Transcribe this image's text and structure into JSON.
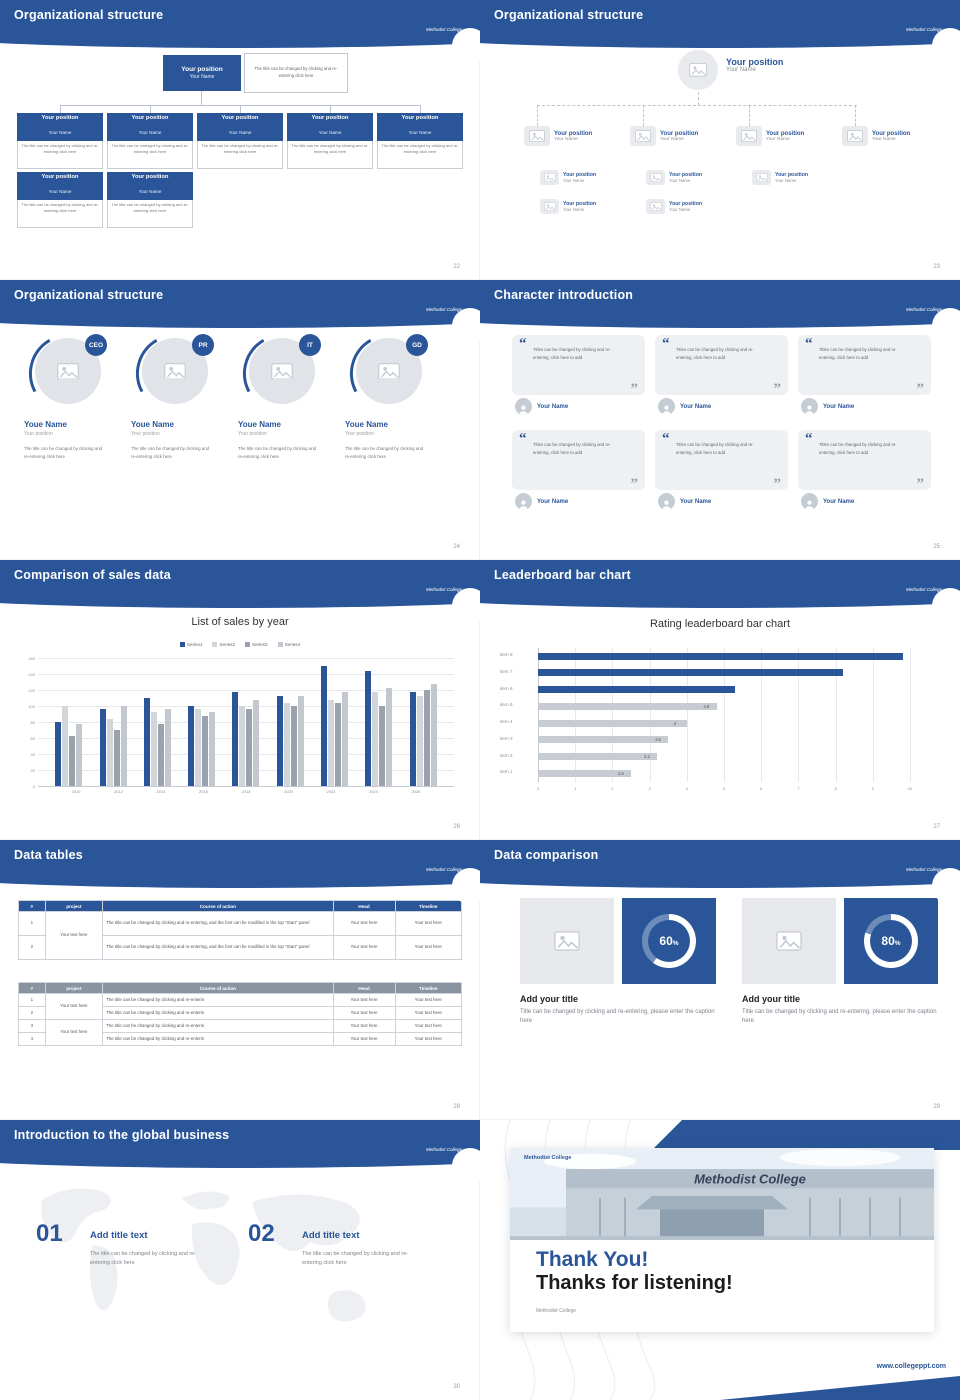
{
  "theme": {
    "brand": "#2a5699",
    "table_header_gray": "#8a93a0",
    "card_gray": "#eef0f3",
    "text_dark": "#333333",
    "text_gray": "#777e87"
  },
  "logo_text": "Methodist College",
  "footer_url": "www.collegeppt.com",
  "icons": {
    "image_placeholder": "image-placeholder-icon",
    "person": "person-icon",
    "open_quote": "open-quote-icon",
    "close_quote": "close-quote-icon"
  },
  "slides": {
    "s22": {
      "title": "Organizational structure",
      "page": "22",
      "node_position": "Your position",
      "node_name": "Your Name",
      "root_note": "The title can be changed by clicking and re-entering click here",
      "node_caption": "The title can be changed by clicking and re-entering click here"
    },
    "s23": {
      "title": "Organizational structure",
      "page": "23",
      "node_position": "Your position",
      "node_name": "Your Name"
    },
    "s24": {
      "title": "Organizational structure",
      "page": "24",
      "roles": [
        "CEO",
        "PR",
        "IT",
        "GD"
      ],
      "member_name": "Youe Name",
      "member_position": "Your position",
      "caption": "The title can be changed by clicking and re-entering click here"
    },
    "s25": {
      "title": "Character introduction",
      "page": "25",
      "quote": "Titles can be changed by clicking and re-entering, click here to add",
      "member_name": "Your Name"
    },
    "s26": {
      "title": "Comparison of sales data",
      "page": "26"
    },
    "s27": {
      "title": "Leaderboard bar chart",
      "page": "27"
    },
    "s28": {
      "title": "Data tables",
      "page": "28",
      "table1": {
        "headers": [
          "#",
          "project",
          "Course of action",
          "Head",
          "Timeline"
        ],
        "rows": [
          [
            "1",
            "Your text here",
            "The title can be changed by clicking and re-entering, and the font can be modified in the top \"Start\" panel",
            "Your text here",
            "Your text here"
          ],
          [
            "2",
            "",
            "The title can be changed by clicking and re-entering, and the font can be modified in the top \"Start\" panel",
            "Your text here",
            "Your text here"
          ]
        ]
      },
      "table2": {
        "headers": [
          "#",
          "project",
          "Course of action",
          "Head",
          "Timeline"
        ],
        "rows": [
          [
            "1",
            "Your text here",
            "The title can be changed by clicking and re-enterin",
            "Your text here",
            "Your text here"
          ],
          [
            "2",
            "",
            "The title can be changed by clicking and re-enterin",
            "Your text here",
            "Your text here"
          ],
          [
            "3",
            "Your text here",
            "The title can be changed by clicking and re-enterin",
            "Your text here",
            "Your text here"
          ],
          [
            "4",
            "",
            "The title can be changed by clicking and re-enterin",
            "Your text here",
            "Your text here"
          ]
        ]
      }
    },
    "s29": {
      "title": "Data comparison",
      "page": "29",
      "panels": [
        {
          "percent": 60,
          "item_title": "Add your title",
          "caption": "Title can be changed by clicking and re-entering, please enter the caption here"
        },
        {
          "percent": 80,
          "item_title": "Add your title",
          "caption": "Title can be changed by clicking and re-entering, please enter the caption here"
        }
      ]
    },
    "s30": {
      "title": "Introduction to the global business",
      "page": "30",
      "items": [
        {
          "number": "01",
          "item_title": "Add title text",
          "caption": "The title can be changed by clicking and re-entering click here"
        },
        {
          "number": "02",
          "item_title": "Add title text",
          "caption": "The title can be changed by clicking and re-entering click here"
        }
      ]
    },
    "s31": {
      "college": "Methodist College",
      "thank_line1": "Thank You!",
      "thank_line2": "Thanks for listening!",
      "building_sign": "Methodist College"
    }
  },
  "chart_data": [
    {
      "slide": "s26",
      "type": "bar",
      "title": "List of sales by year",
      "categories": [
        "2010",
        "2012",
        "2014",
        "2016",
        "2018",
        "2020",
        "2022",
        "2024",
        "2026"
      ],
      "series": [
        {
          "name": "Series1",
          "color": "#2a5699",
          "values": [
            80,
            96,
            110,
            100,
            118,
            112,
            150,
            144,
            118
          ]
        },
        {
          "name": "Series2",
          "color": "#d2d6db",
          "values": [
            100,
            84,
            92,
            96,
            100,
            104,
            108,
            118,
            112
          ]
        },
        {
          "name": "Series3",
          "color": "#9aa3ad",
          "values": [
            62,
            70,
            78,
            88,
            96,
            100,
            104,
            100,
            120
          ]
        },
        {
          "name": "Series4",
          "color": "#c3c8ce",
          "values": [
            78,
            100,
            96,
            92,
            108,
            112,
            118,
            122,
            128
          ]
        }
      ],
      "ylim": [
        0,
        160
      ],
      "ystep": 20,
      "grid": true,
      "legend_position": "top"
    },
    {
      "slide": "s27",
      "type": "bar",
      "orientation": "horizontal",
      "title": "Rating leaderboard bar chart",
      "categories": [
        "item 1",
        "item 2",
        "item 3",
        "item 4",
        "item 5",
        "item 6",
        "item 7",
        "item 8"
      ],
      "values": [
        2.5,
        3.2,
        3.5,
        4,
        4.8,
        5.3,
        8.2,
        9.8
      ],
      "value_labels": [
        "2.5",
        "3.2",
        "3.5",
        "4",
        "4.8",
        "",
        "",
        ""
      ],
      "bar_colors": [
        "#c7ccd2",
        "#c7ccd2",
        "#c7ccd2",
        "#c7ccd2",
        "#c7ccd2",
        "#2a5699",
        "#2a5699",
        "#2a5699"
      ],
      "xlim": [
        0,
        10
      ],
      "xstep": 1,
      "grid": true
    }
  ]
}
